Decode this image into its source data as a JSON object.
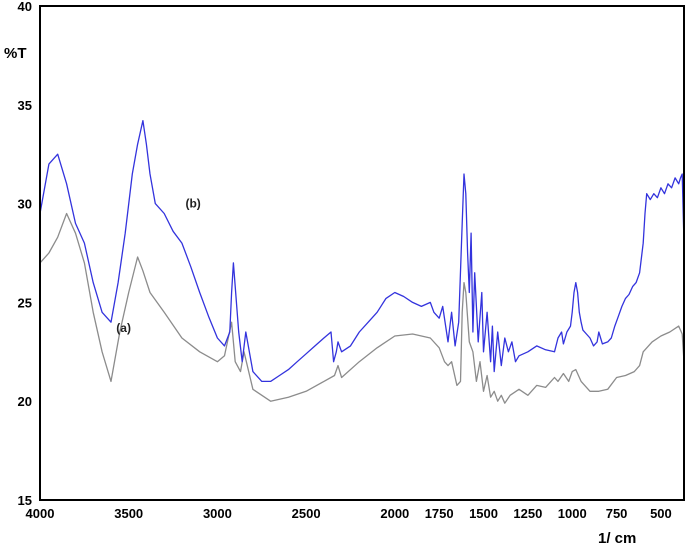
{
  "chart_data": {
    "type": "line",
    "title": "",
    "xlabel": "1/ cm",
    "ylabel": "%T",
    "xlim": [
      4000,
      370
    ],
    "ylim": [
      15,
      40
    ],
    "x_ticks": [
      4000,
      3500,
      3000,
      2500,
      2000,
      1750,
      1500,
      1250,
      1000,
      750,
      500
    ],
    "x_tick_labels": [
      "4000",
      "3500",
      "3000",
      "2500",
      "2000",
      "1750",
      "1500",
      "1250",
      "1000",
      "750",
      "500"
    ],
    "y_ticks": [
      15,
      20,
      25,
      30,
      35,
      40
    ],
    "y_tick_labels": [
      "15",
      "20",
      "25",
      "30",
      "35",
      "40"
    ],
    "grid": false,
    "series": [
      {
        "name": "(a)",
        "color": "#8c8c8c",
        "x": [
          4000,
          3950,
          3900,
          3850,
          3800,
          3750,
          3700,
          3650,
          3600,
          3550,
          3500,
          3450,
          3420,
          3380,
          3300,
          3200,
          3100,
          3000,
          2960,
          2920,
          2900,
          2870,
          2850,
          2800,
          2700,
          2600,
          2500,
          2400,
          2340,
          2320,
          2300,
          2200,
          2100,
          2000,
          1900,
          1800,
          1750,
          1720,
          1700,
          1680,
          1650,
          1630,
          1620,
          1610,
          1600,
          1580,
          1560,
          1540,
          1520,
          1500,
          1480,
          1460,
          1440,
          1420,
          1400,
          1380,
          1350,
          1300,
          1250,
          1200,
          1150,
          1100,
          1080,
          1050,
          1020,
          1000,
          980,
          950,
          900,
          850,
          800,
          750,
          700,
          650,
          620,
          600,
          550,
          500,
          450,
          400,
          380,
          370
        ],
        "y": [
          27.0,
          27.5,
          28.3,
          29.5,
          28.5,
          27.0,
          24.5,
          22.5,
          21.0,
          23.5,
          25.5,
          27.3,
          26.6,
          25.5,
          24.5,
          23.2,
          22.5,
          22.0,
          22.3,
          24.0,
          22.0,
          21.5,
          22.5,
          20.6,
          20.0,
          20.2,
          20.5,
          21.0,
          21.3,
          21.8,
          21.2,
          22.0,
          22.7,
          23.3,
          23.4,
          23.2,
          22.7,
          22.0,
          21.8,
          22.0,
          20.8,
          21.0,
          24.5,
          26.0,
          25.5,
          23.0,
          22.5,
          21.0,
          22.0,
          20.5,
          21.3,
          20.2,
          20.5,
          20.0,
          20.3,
          19.9,
          20.3,
          20.6,
          20.3,
          20.8,
          20.7,
          21.2,
          21.0,
          21.4,
          21.0,
          21.5,
          21.6,
          21.0,
          20.5,
          20.5,
          20.6,
          21.2,
          21.3,
          21.5,
          21.8,
          22.5,
          23.0,
          23.3,
          23.5,
          23.8,
          23.4,
          22.0
        ]
      },
      {
        "name": "(b)",
        "color": "#3333dd",
        "x": [
          4000,
          3950,
          3900,
          3850,
          3800,
          3750,
          3700,
          3650,
          3600,
          3560,
          3520,
          3480,
          3450,
          3420,
          3400,
          3380,
          3350,
          3300,
          3250,
          3200,
          3150,
          3100,
          3050,
          3000,
          2960,
          2930,
          2920,
          2910,
          2880,
          2860,
          2840,
          2800,
          2750,
          2700,
          2650,
          2600,
          2550,
          2500,
          2450,
          2400,
          2360,
          2345,
          2330,
          2320,
          2300,
          2250,
          2200,
          2150,
          2100,
          2050,
          2000,
          1950,
          1900,
          1850,
          1800,
          1780,
          1750,
          1730,
          1700,
          1680,
          1660,
          1640,
          1620,
          1610,
          1600,
          1590,
          1580,
          1570,
          1560,
          1550,
          1530,
          1510,
          1500,
          1480,
          1460,
          1450,
          1440,
          1420,
          1400,
          1380,
          1360,
          1340,
          1320,
          1300,
          1250,
          1200,
          1150,
          1100,
          1080,
          1060,
          1050,
          1030,
          1010,
          1000,
          990,
          980,
          970,
          960,
          950,
          940,
          920,
          900,
          880,
          860,
          850,
          830,
          800,
          780,
          760,
          740,
          720,
          700,
          680,
          660,
          640,
          620,
          600,
          590,
          580,
          560,
          540,
          520,
          500,
          480,
          460,
          440,
          420,
          400,
          390,
          380,
          370
        ],
        "y": [
          29.5,
          32.0,
          32.5,
          31.0,
          29.0,
          28.0,
          26.0,
          24.5,
          24.0,
          26.0,
          28.5,
          31.5,
          33.0,
          34.2,
          33.0,
          31.5,
          30.0,
          29.5,
          28.6,
          28.0,
          26.8,
          25.5,
          24.3,
          23.2,
          22.8,
          23.5,
          25.5,
          27.0,
          23.5,
          22.0,
          23.5,
          21.5,
          21.0,
          21.0,
          21.3,
          21.6,
          22.0,
          22.4,
          22.8,
          23.2,
          23.5,
          22.0,
          22.5,
          23.0,
          22.5,
          22.8,
          23.5,
          24.0,
          24.5,
          25.2,
          25.5,
          25.3,
          25.0,
          24.8,
          25.0,
          24.5,
          24.2,
          24.8,
          23.0,
          24.5,
          22.8,
          24.0,
          29.0,
          31.5,
          30.5,
          27.5,
          25.5,
          28.5,
          23.5,
          26.5,
          23.0,
          25.5,
          22.5,
          24.5,
          22.0,
          23.8,
          21.5,
          23.5,
          21.8,
          23.2,
          22.5,
          23.0,
          22.0,
          22.3,
          22.5,
          22.8,
          22.6,
          22.5,
          23.2,
          23.5,
          22.9,
          23.5,
          23.8,
          24.5,
          25.5,
          26.0,
          25.5,
          24.5,
          24.0,
          23.6,
          23.4,
          23.2,
          22.8,
          23.0,
          23.5,
          22.9,
          23.0,
          23.2,
          23.8,
          24.3,
          24.8,
          25.2,
          25.4,
          25.8,
          26.0,
          26.5,
          28.0,
          29.5,
          30.5,
          30.2,
          30.5,
          30.3,
          30.8,
          30.5,
          31.0,
          30.8,
          31.3,
          31.0,
          31.3,
          31.5,
          28.0
        ]
      }
    ],
    "annotations": [
      {
        "text": "(b)",
        "x": 3180,
        "y": 29.8
      },
      {
        "text": "(a)",
        "x": 3570,
        "y": 23.5
      }
    ]
  }
}
